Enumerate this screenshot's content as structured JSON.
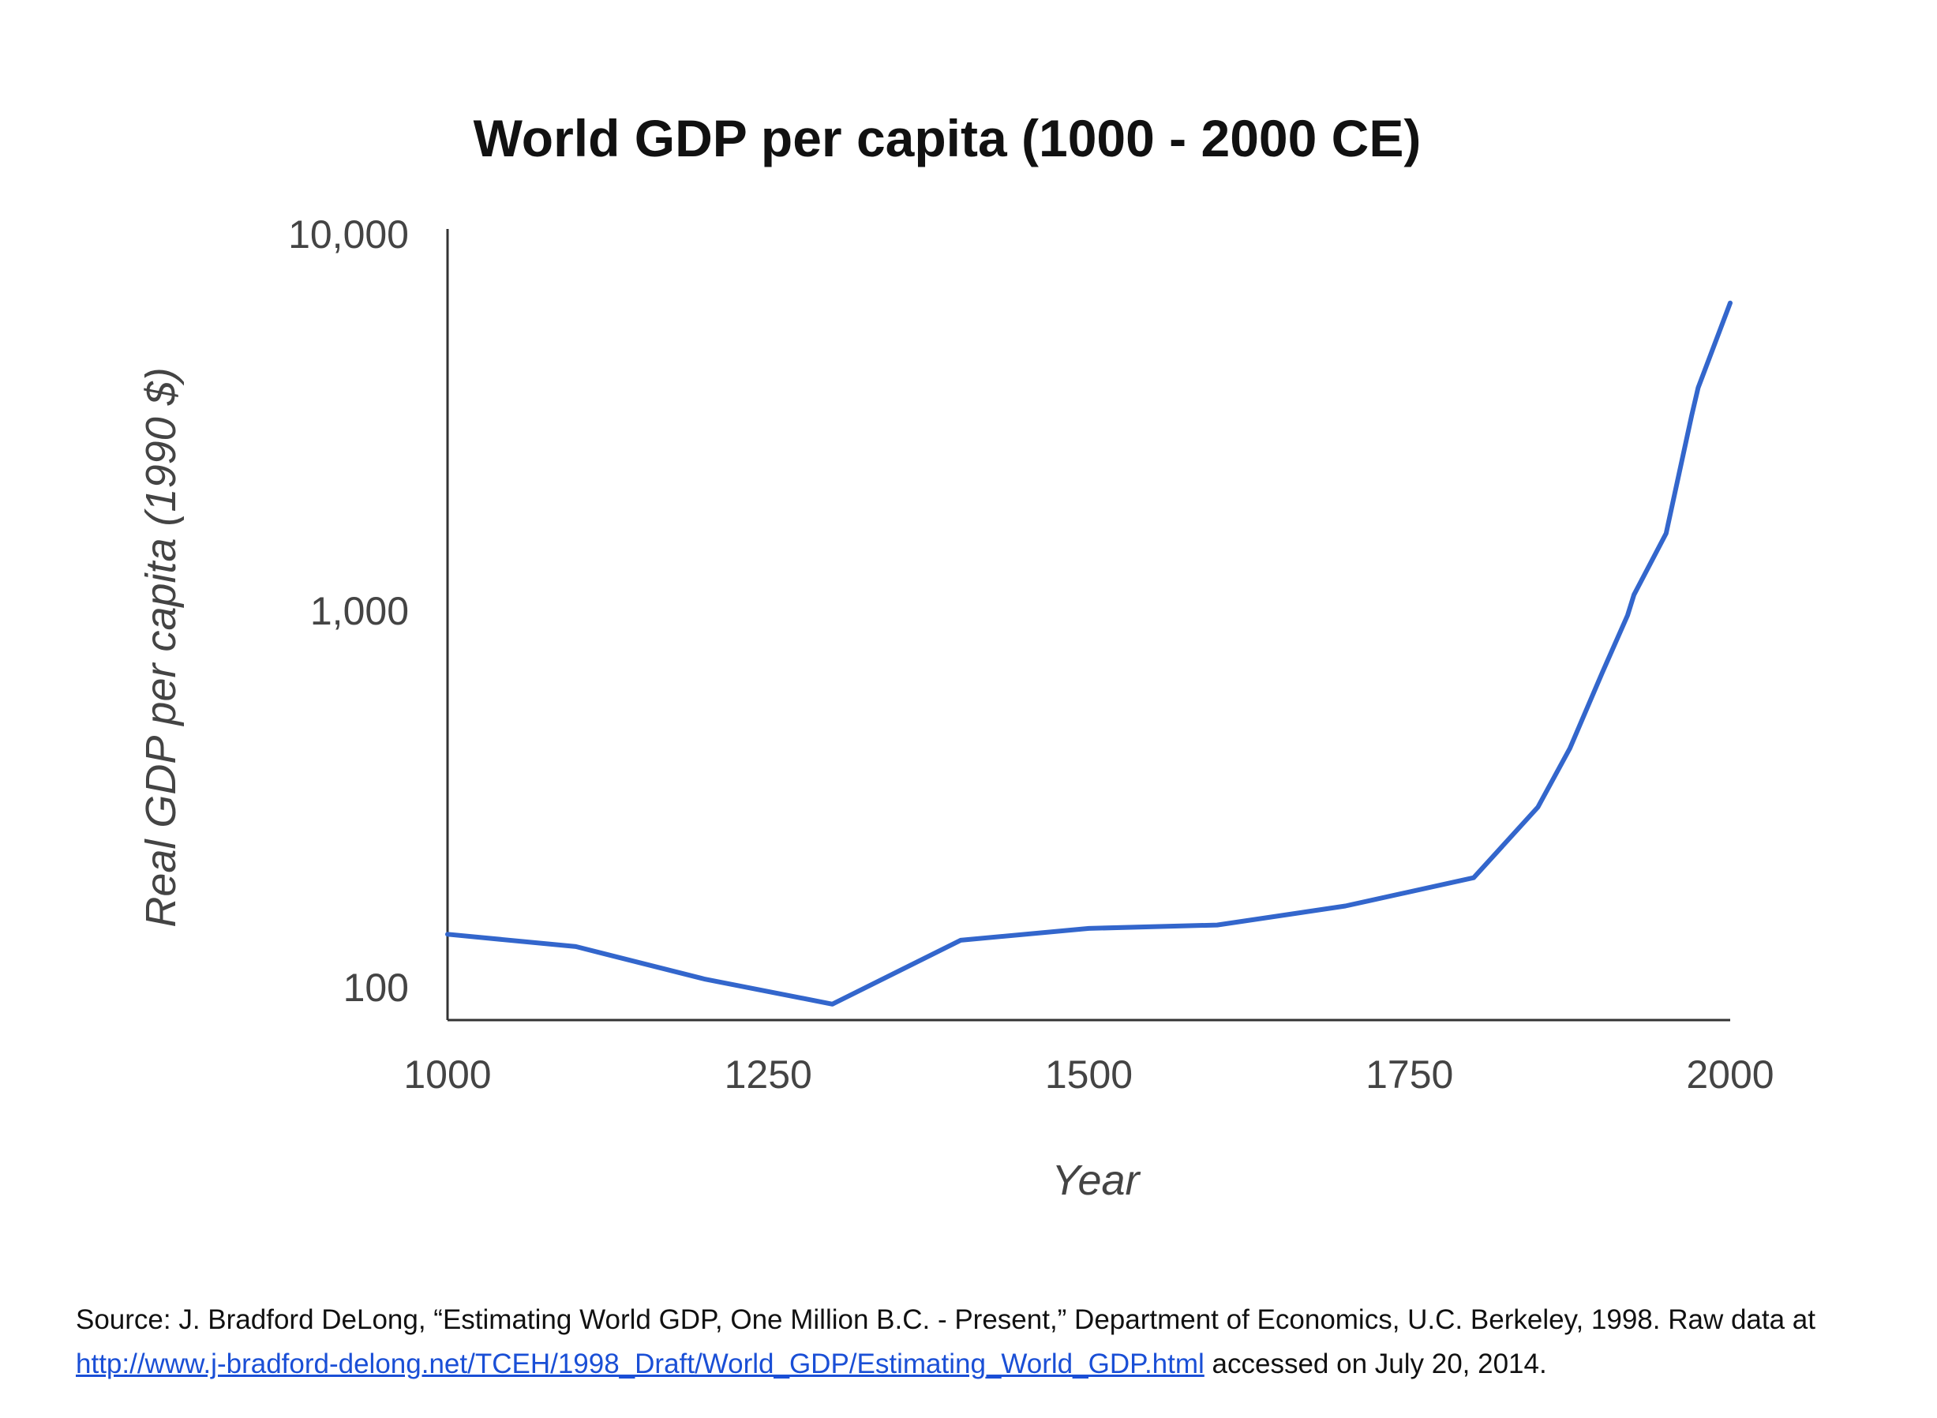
{
  "chart_data": {
    "type": "line",
    "title": "World GDP per capita (1000 - 2000 CE)",
    "xlabel": "Year",
    "ylabel": "Real GDP per capita (1990 $)",
    "xlim": [
      1000,
      2000
    ],
    "ylim": [
      100,
      10000
    ],
    "yscale": "log",
    "xticks": [
      1000,
      1250,
      1500,
      1750,
      2000
    ],
    "xtick_labels": [
      "1000",
      "1250",
      "1500",
      "1750",
      "2000"
    ],
    "yticks": [
      100,
      1000,
      10000
    ],
    "ytick_labels": [
      "100",
      "1,000",
      "10,000"
    ],
    "grid": false,
    "line_color": "#3366cc",
    "series": [
      {
        "x": [
          1000,
          1100,
          1200,
          1300,
          1400,
          1500,
          1600,
          1700,
          1800,
          1850,
          1875,
          1900,
          1920,
          1925,
          1950,
          1970,
          1975,
          2000
        ],
        "y": [
          138,
          128,
          105,
          90,
          133,
          143,
          146,
          164,
          195,
          300,
          430,
          680,
          970,
          1100,
          1600,
          3300,
          3900,
          6550
        ]
      }
    ]
  },
  "source": {
    "text_before": "Source: J. Bradford DeLong, “Estimating World GDP, One Million B.C. - Present,” Department of Economics, U.C. Berkeley, 1998. Raw data at ",
    "link": "http://www.j-bradford-delong.net/TCEH/1998_Draft/World_GDP/Estimating_World_GDP.html",
    "text_after": " accessed on July 20, 2014."
  }
}
